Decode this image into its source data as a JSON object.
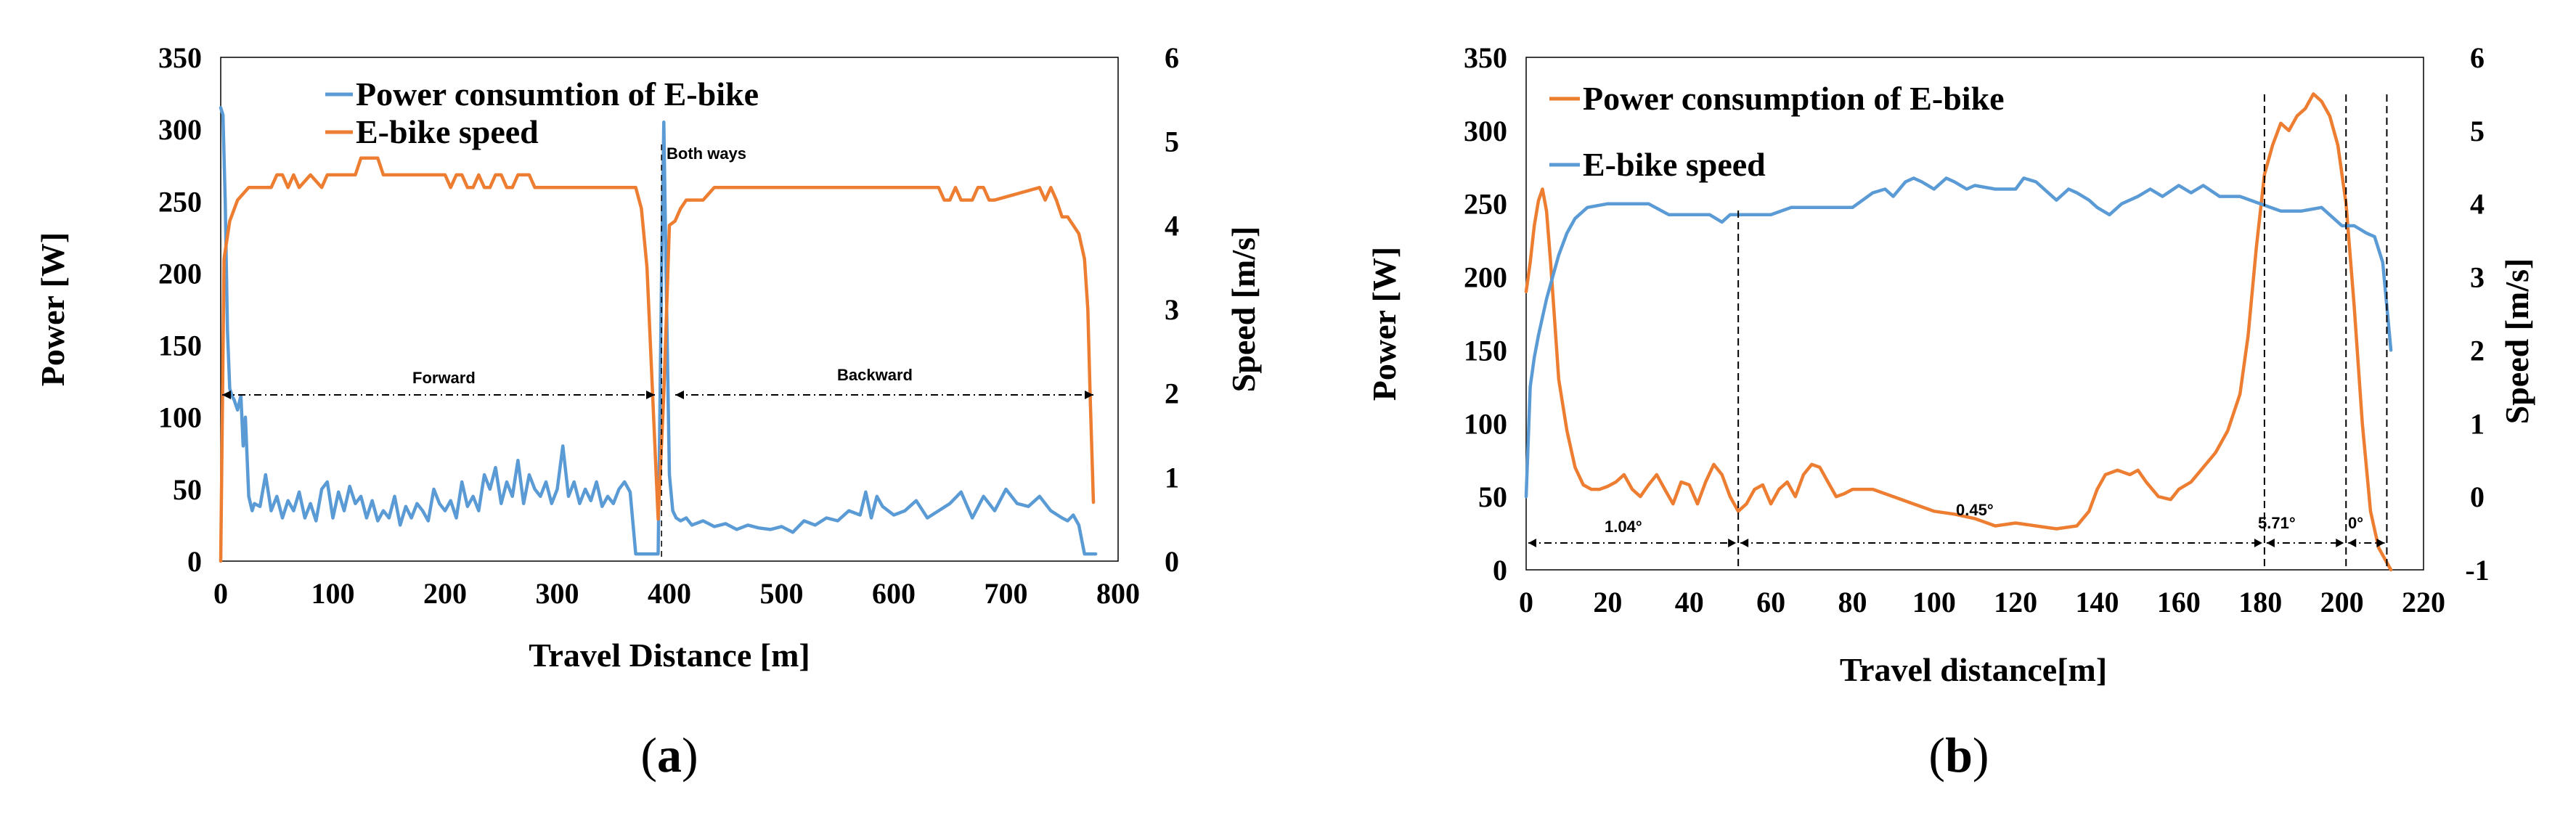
{
  "figure": {
    "caption_a": {
      "open": "(",
      "letter": "a",
      "close": ")"
    },
    "caption_b": {
      "open": "(",
      "letter": "b",
      "close": ")"
    }
  },
  "colors": {
    "blue": "#5B9BD5",
    "orange": "#ED7D31",
    "axis": "#000000"
  },
  "chart_data": [
    {
      "id": "a",
      "type": "line",
      "xlabel": "Travel Distance [m]",
      "ylabel": "Power [W]",
      "y2label": "Speed [m/s]",
      "xlim": [
        0,
        800
      ],
      "ylim": [
        0,
        350
      ],
      "y2lim": [
        0,
        6
      ],
      "xticks": [
        0,
        100,
        200,
        300,
        400,
        500,
        600,
        700,
        800
      ],
      "yticks": [
        0,
        50,
        100,
        150,
        200,
        250,
        300,
        350
      ],
      "y2ticks": [
        0,
        1,
        2,
        3,
        4,
        5,
        6
      ],
      "legend": [
        "Power consumtion of E-bike",
        "E-bike speed"
      ],
      "annotations": {
        "both_ways": "Both ways",
        "forward": "Forward",
        "backward": "Backward"
      },
      "series": [
        {
          "name": "Power consumtion of E-bike",
          "axis": "left",
          "color": "blue",
          "x": [
            0,
            2,
            4,
            6,
            8,
            10,
            12,
            15,
            18,
            20,
            22,
            25,
            28,
            30,
            35,
            40,
            45,
            50,
            55,
            60,
            65,
            70,
            75,
            80,
            85,
            90,
            95,
            100,
            105,
            110,
            115,
            120,
            125,
            130,
            135,
            140,
            145,
            150,
            155,
            160,
            165,
            170,
            175,
            180,
            185,
            190,
            195,
            200,
            205,
            210,
            215,
            220,
            225,
            230,
            235,
            240,
            245,
            250,
            255,
            260,
            265,
            270,
            275,
            280,
            285,
            290,
            295,
            300,
            305,
            310,
            315,
            320,
            325,
            330,
            335,
            340,
            345,
            350,
            355,
            360,
            365,
            370,
            375,
            380,
            385,
            390,
            393,
            395,
            397,
            400,
            403,
            406,
            410,
            415,
            420,
            430,
            440,
            450,
            460,
            470,
            480,
            490,
            500,
            510,
            520,
            530,
            540,
            550,
            560,
            570,
            575,
            580,
            585,
            590,
            600,
            610,
            620,
            630,
            640,
            650,
            660,
            670,
            680,
            690,
            700,
            710,
            720,
            730,
            740,
            750,
            755,
            760,
            765,
            770,
            775,
            780
          ],
          "y": [
            315,
            310,
            250,
            160,
            120,
            115,
            112,
            105,
            115,
            80,
            100,
            45,
            35,
            40,
            38,
            60,
            35,
            45,
            30,
            42,
            35,
            48,
            30,
            40,
            28,
            50,
            55,
            30,
            48,
            35,
            52,
            40,
            45,
            30,
            42,
            28,
            35,
            30,
            45,
            25,
            38,
            30,
            40,
            35,
            28,
            50,
            40,
            35,
            42,
            30,
            55,
            38,
            45,
            35,
            60,
            50,
            65,
            40,
            55,
            45,
            70,
            40,
            60,
            50,
            45,
            55,
            40,
            50,
            80,
            45,
            55,
            40,
            50,
            42,
            55,
            38,
            45,
            40,
            50,
            55,
            48,
            5,
            5,
            5,
            5,
            5,
            200,
            305,
            200,
            60,
            35,
            30,
            28,
            30,
            25,
            28,
            24,
            26,
            22,
            25,
            23,
            22,
            24,
            20,
            28,
            25,
            30,
            28,
            35,
            32,
            48,
            30,
            45,
            38,
            32,
            35,
            42,
            30,
            35,
            40,
            48,
            30,
            45,
            35,
            50,
            40,
            38,
            45,
            35,
            30,
            28,
            32,
            25,
            5,
            5,
            5
          ]
        },
        {
          "name": "E-bike speed",
          "axis": "right",
          "color": "orange",
          "x": [
            0,
            3,
            8,
            15,
            25,
            40,
            45,
            50,
            55,
            60,
            65,
            70,
            80,
            90,
            95,
            100,
            105,
            110,
            115,
            120,
            125,
            135,
            140,
            145,
            150,
            155,
            200,
            205,
            210,
            215,
            220,
            225,
            230,
            235,
            240,
            245,
            250,
            255,
            260,
            265,
            270,
            275,
            280,
            285,
            370,
            375,
            380,
            385,
            390,
            395,
            400,
            405,
            410,
            415,
            420,
            430,
            440,
            450,
            460,
            640,
            645,
            650,
            655,
            660,
            670,
            675,
            680,
            685,
            690,
            730,
            735,
            740,
            745,
            750,
            755,
            765,
            770,
            773,
            775,
            778
          ],
          "y": [
            0,
            3.6,
            4.05,
            4.3,
            4.45,
            4.45,
            4.45,
            4.6,
            4.6,
            4.45,
            4.6,
            4.45,
            4.6,
            4.45,
            4.6,
            4.6,
            4.6,
            4.6,
            4.6,
            4.6,
            4.8,
            4.8,
            4.8,
            4.6,
            4.6,
            4.6,
            4.6,
            4.45,
            4.6,
            4.6,
            4.45,
            4.45,
            4.6,
            4.45,
            4.45,
            4.6,
            4.6,
            4.45,
            4.45,
            4.6,
            4.6,
            4.6,
            4.45,
            4.45,
            4.45,
            4.2,
            3.5,
            2.0,
            0.5,
            2.0,
            4.0,
            4.05,
            4.2,
            4.3,
            4.3,
            4.3,
            4.45,
            4.45,
            4.45,
            4.45,
            4.3,
            4.3,
            4.45,
            4.3,
            4.3,
            4.45,
            4.45,
            4.3,
            4.3,
            4.45,
            4.3,
            4.45,
            4.3,
            4.1,
            4.1,
            3.9,
            3.6,
            3.0,
            2.0,
            0.7
          ]
        }
      ],
      "dividers": [
        {
          "x": 393,
          "yfrom": 0,
          "yto": 350
        }
      ]
    },
    {
      "id": "b",
      "type": "line",
      "xlabel": "Travel distance[m]",
      "ylabel": "Power [W]",
      "y2label": "Speed [m/s]",
      "xlim": [
        0,
        220
      ],
      "ylim": [
        0,
        350
      ],
      "y2lim": [
        -1,
        6
      ],
      "xticks": [
        0,
        20,
        40,
        60,
        80,
        100,
        120,
        140,
        160,
        180,
        200,
        220
      ],
      "yticks": [
        0,
        50,
        100,
        150,
        200,
        250,
        300,
        350
      ],
      "y2ticks": [
        -1,
        0,
        1,
        2,
        3,
        4,
        5,
        6
      ],
      "legend": [
        "Power consumption of E-bike",
        "E-bike speed"
      ],
      "annotations": {
        "seg1": "1.04°",
        "seg2": "0.45°",
        "seg3": "5.71°",
        "seg4": "0°"
      },
      "dividers_x": [
        52,
        181,
        201,
        211
      ],
      "series": [
        {
          "name": "Power consumption of E-bike",
          "axis": "left",
          "color": "orange",
          "x": [
            0,
            1,
            2,
            3,
            4,
            5,
            6,
            7,
            8,
            10,
            12,
            14,
            16,
            18,
            20,
            22,
            24,
            26,
            28,
            30,
            32,
            34,
            36,
            38,
            40,
            42,
            44,
            46,
            48,
            50,
            52,
            54,
            56,
            58,
            60,
            62,
            64,
            66,
            68,
            70,
            72,
            74,
            76,
            78,
            80,
            85,
            90,
            95,
            100,
            105,
            110,
            115,
            120,
            125,
            130,
            135,
            138,
            140,
            142,
            145,
            148,
            150,
            152,
            155,
            158,
            160,
            163,
            166,
            169,
            172,
            175,
            177,
            179,
            181,
            183,
            185,
            187,
            189,
            191,
            193,
            195,
            197,
            199,
            201,
            203,
            205,
            207,
            209,
            211,
            212
          ],
          "y": [
            190,
            210,
            235,
            252,
            260,
            245,
            210,
            170,
            130,
            95,
            70,
            58,
            55,
            55,
            57,
            60,
            65,
            55,
            50,
            58,
            65,
            55,
            45,
            60,
            58,
            45,
            60,
            72,
            65,
            50,
            40,
            45,
            55,
            58,
            45,
            55,
            60,
            50,
            65,
            72,
            70,
            60,
            50,
            52,
            55,
            55,
            50,
            45,
            40,
            38,
            35,
            30,
            32,
            30,
            28,
            30,
            40,
            55,
            65,
            68,
            65,
            68,
            60,
            50,
            48,
            55,
            60,
            70,
            80,
            95,
            120,
            160,
            220,
            270,
            290,
            305,
            300,
            310,
            315,
            325,
            320,
            310,
            290,
            250,
            180,
            100,
            40,
            15,
            5,
            0
          ]
        },
        {
          "name": "E-bike speed",
          "axis": "right",
          "color": "blue",
          "x": [
            0,
            1,
            2,
            3,
            5,
            8,
            10,
            12,
            15,
            20,
            25,
            30,
            35,
            40,
            45,
            48,
            50,
            52,
            55,
            60,
            65,
            70,
            75,
            80,
            85,
            88,
            90,
            93,
            95,
            97,
            100,
            103,
            105,
            108,
            110,
            115,
            120,
            122,
            125,
            128,
            130,
            133,
            135,
            138,
            140,
            143,
            146,
            150,
            153,
            156,
            160,
            163,
            166,
            170,
            175,
            180,
            185,
            190,
            195,
            198,
            200,
            203,
            206,
            208,
            210,
            212
          ],
          "y": [
            0,
            1.5,
            1.9,
            2.2,
            2.7,
            3.3,
            3.6,
            3.8,
            3.95,
            4.0,
            4.0,
            4.0,
            3.85,
            3.85,
            3.85,
            3.75,
            3.85,
            3.85,
            3.85,
            3.85,
            3.95,
            3.95,
            3.95,
            3.95,
            4.15,
            4.2,
            4.1,
            4.3,
            4.35,
            4.3,
            4.2,
            4.35,
            4.3,
            4.2,
            4.25,
            4.2,
            4.2,
            4.35,
            4.3,
            4.15,
            4.05,
            4.2,
            4.15,
            4.05,
            3.95,
            3.85,
            4.0,
            4.1,
            4.2,
            4.1,
            4.25,
            4.15,
            4.25,
            4.1,
            4.1,
            4.0,
            3.9,
            3.9,
            3.95,
            3.8,
            3.7,
            3.7,
            3.6,
            3.55,
            3.2,
            2.0
          ]
        }
      ]
    }
  ]
}
